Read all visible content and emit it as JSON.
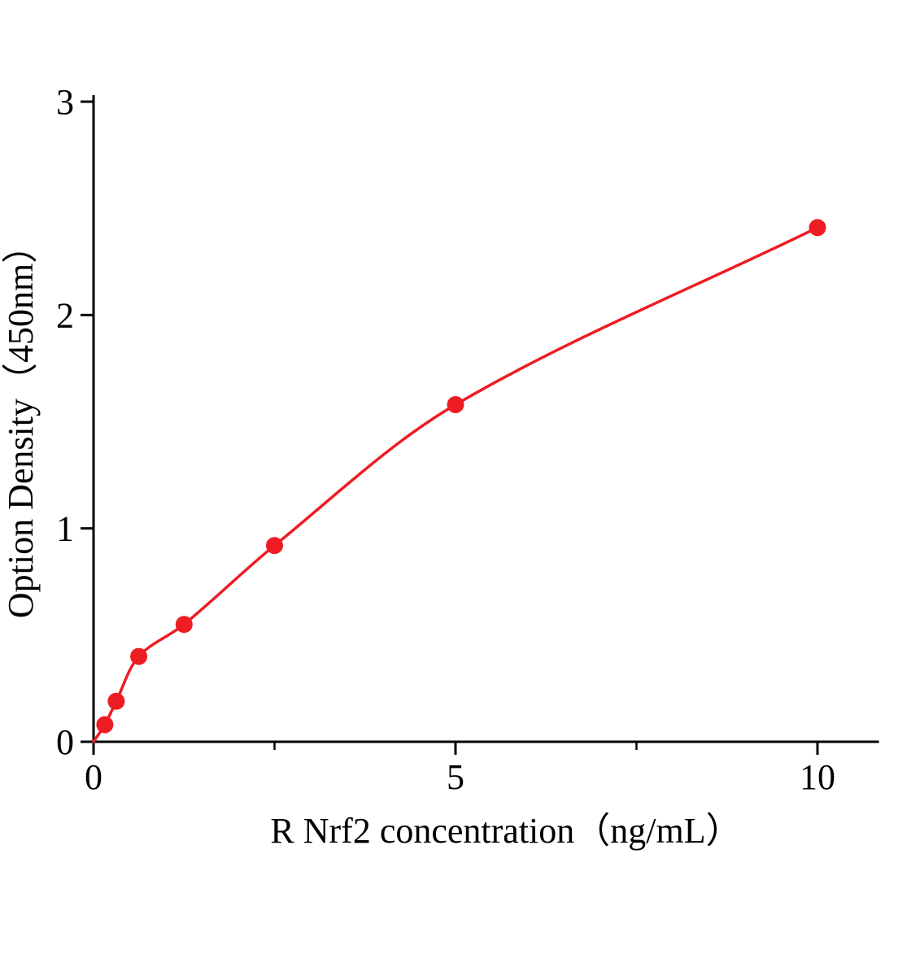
{
  "chart_data": {
    "type": "line",
    "title": "",
    "xlabel": "R Nrf2 concentration（ng/mL）",
    "ylabel": "Option Density（450nm）",
    "x": [
      0.156,
      0.313,
      0.625,
      1.25,
      2.5,
      5,
      10
    ],
    "y": [
      0.08,
      0.19,
      0.4,
      0.55,
      0.92,
      1.58,
      2.41
    ],
    "curve_origin": [
      0,
      0
    ],
    "xlim": [
      0,
      10.85
    ],
    "ylim": [
      0,
      3
    ],
    "x_ticks": [
      0,
      5,
      10
    ],
    "x_minor_ticks": [
      2.5,
      7.5
    ],
    "y_ticks": [
      0,
      1,
      2,
      3
    ],
    "grid": false,
    "legend": false,
    "line_color": "#ee1c23",
    "marker_color": "#ee1c23",
    "axis_color": "#000000"
  }
}
